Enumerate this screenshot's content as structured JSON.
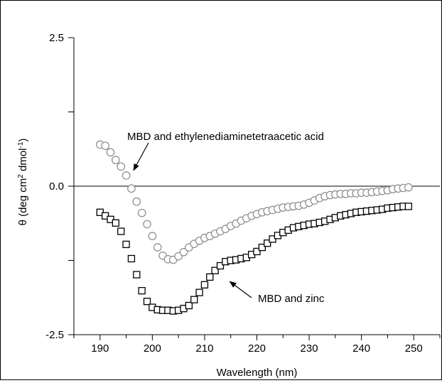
{
  "chart_data": {
    "type": "scatter",
    "xlabel": "Wavelength (nm)",
    "ylabel_parts": {
      "before": "θ (deg cm",
      "sup1": "2",
      "middle": " dmol",
      "sup2": "-1",
      "after": ")"
    },
    "xlim": [
      185,
      255
    ],
    "ylim": [
      -2.5,
      2.5
    ],
    "x_ticks": [
      190,
      200,
      210,
      220,
      230,
      240,
      250
    ],
    "x_tick_labels": [
      "190",
      "200",
      "210",
      "220",
      "230",
      "240",
      "250"
    ],
    "y_tick_labels": [
      "2.5",
      "0.0",
      "-2.5"
    ],
    "y_tick_values": [
      2.5,
      0.0,
      -2.5
    ],
    "zero_line": 0,
    "series": [
      {
        "name": "MBD and ethylenediaminetetraacetic acid",
        "marker": "circle",
        "color": "#8a8a8a",
        "x": [
          190,
          191,
          192,
          193,
          194,
          195,
          196,
          197,
          198,
          199,
          200,
          201,
          202,
          203,
          204,
          205,
          206,
          207,
          208,
          209,
          210,
          211,
          212,
          213,
          214,
          215,
          216,
          217,
          218,
          219,
          220,
          221,
          222,
          223,
          224,
          225,
          226,
          227,
          228,
          229,
          230,
          231,
          232,
          233,
          234,
          235,
          236,
          237,
          238,
          239,
          240,
          241,
          242,
          243,
          244,
          245,
          246,
          247,
          248,
          249
        ],
        "y": [
          0.7,
          0.68,
          0.57,
          0.44,
          0.33,
          0.18,
          -0.04,
          -0.26,
          -0.45,
          -0.64,
          -0.84,
          -1.03,
          -1.17,
          -1.23,
          -1.24,
          -1.18,
          -1.11,
          -1.03,
          -0.97,
          -0.92,
          -0.87,
          -0.84,
          -0.8,
          -0.76,
          -0.72,
          -0.67,
          -0.63,
          -0.58,
          -0.54,
          -0.5,
          -0.47,
          -0.44,
          -0.42,
          -0.4,
          -0.38,
          -0.36,
          -0.35,
          -0.34,
          -0.33,
          -0.31,
          -0.28,
          -0.24,
          -0.2,
          -0.17,
          -0.15,
          -0.14,
          -0.13,
          -0.13,
          -0.12,
          -0.12,
          -0.11,
          -0.11,
          -0.1,
          -0.09,
          -0.08,
          -0.07,
          -0.05,
          -0.04,
          -0.03,
          -0.02
        ]
      },
      {
        "name": "MBD and zinc",
        "marker": "square",
        "color": "#000000",
        "x": [
          190,
          191,
          192,
          193,
          194,
          195,
          196,
          197,
          198,
          199,
          200,
          201,
          202,
          203,
          204,
          205,
          206,
          207,
          208,
          209,
          210,
          211,
          212,
          213,
          214,
          215,
          216,
          217,
          218,
          219,
          220,
          221,
          222,
          223,
          224,
          225,
          226,
          227,
          228,
          229,
          230,
          231,
          232,
          233,
          234,
          235,
          236,
          237,
          238,
          239,
          240,
          241,
          242,
          243,
          244,
          245,
          246,
          247,
          248,
          249
        ],
        "y": [
          -0.44,
          -0.5,
          -0.56,
          -0.62,
          -0.76,
          -0.98,
          -1.22,
          -1.49,
          -1.76,
          -1.94,
          -2.04,
          -2.08,
          -2.09,
          -2.09,
          -2.1,
          -2.09,
          -2.06,
          -2.01,
          -1.91,
          -1.79,
          -1.66,
          -1.53,
          -1.42,
          -1.34,
          -1.27,
          -1.25,
          -1.24,
          -1.22,
          -1.2,
          -1.15,
          -1.1,
          -1.03,
          -0.96,
          -0.89,
          -0.83,
          -0.78,
          -0.74,
          -0.7,
          -0.68,
          -0.66,
          -0.64,
          -0.63,
          -0.61,
          -0.59,
          -0.56,
          -0.53,
          -0.5,
          -0.48,
          -0.46,
          -0.44,
          -0.43,
          -0.42,
          -0.41,
          -0.4,
          -0.39,
          -0.37,
          -0.36,
          -0.35,
          -0.34,
          -0.34
        ]
      }
    ],
    "annotations": [
      {
        "text": "MBD and ethylenediaminetetraacetic acid",
        "points_to_x": 196,
        "points_to_y": 0.22
      },
      {
        "text": "MBD and zinc",
        "points_to_x": 214,
        "points_to_y": -1.57
      }
    ]
  }
}
